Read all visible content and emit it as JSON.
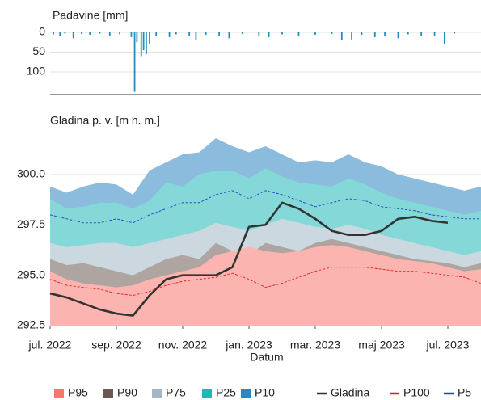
{
  "chart_data": [
    {
      "type": "bar",
      "title": "Padavine [mm]",
      "color": "#1f8fb8",
      "inverted": true,
      "grid": true,
      "xlim": [
        0,
        13
      ],
      "ylim": [
        0,
        155
      ],
      "yticks": [
        0,
        50,
        100
      ],
      "x": [
        0.1,
        0.3,
        0.45,
        0.7,
        0.95,
        1.2,
        1.5,
        1.8,
        2.1,
        2.45,
        2.55,
        2.62,
        2.75,
        2.82,
        2.9,
        3.0,
        3.2,
        3.6,
        3.8,
        4.2,
        4.4,
        4.7,
        5.1,
        5.4,
        5.8,
        6.3,
        6.6,
        7.0,
        7.5,
        8.0,
        8.5,
        8.8,
        9.1,
        9.4,
        9.8,
        10.1,
        10.5,
        10.8,
        11.2,
        11.6,
        11.9,
        12.2
      ],
      "values": [
        5,
        10,
        3,
        15,
        4,
        6,
        3,
        8,
        5,
        12,
        150,
        25,
        60,
        45,
        55,
        30,
        8,
        12,
        5,
        10,
        20,
        6,
        8,
        15,
        4,
        10,
        12,
        5,
        8,
        6,
        4,
        20,
        18,
        6,
        12,
        8,
        15,
        5,
        10,
        8,
        30,
        3
      ]
    },
    {
      "type": "area",
      "title": "Gladina p. v. [m n. m.]",
      "xlabel": "Datum",
      "grid": true,
      "legend": "bottom",
      "xlim": [
        0,
        13
      ],
      "xticks": [
        {
          "value": 0,
          "label": "jul. 2022"
        },
        {
          "value": 2,
          "label": "sep. 2022"
        },
        {
          "value": 4,
          "label": "nov. 2022"
        },
        {
          "value": 6,
          "label": "jan. 2023"
        },
        {
          "value": 8,
          "label": "mar. 2023"
        },
        {
          "value": 10,
          "label": "maj 2023"
        },
        {
          "value": 12,
          "label": "jul. 2023"
        }
      ],
      "ylim": [
        292.5,
        302
      ],
      "yticks": [
        292.5,
        {
          "value": 295,
          "label": "295.0"
        },
        297.5,
        {
          "value": 300,
          "label": "300.0"
        }
      ],
      "x": [
        0,
        0.5,
        1,
        1.5,
        2,
        2.5,
        3,
        3.5,
        4,
        4.5,
        5,
        5.5,
        6,
        6.5,
        7,
        7.5,
        8,
        8.5,
        9,
        9.5,
        10,
        10.5,
        11,
        11.5,
        12,
        12.5,
        13
      ],
      "series": [
        {
          "name": "P95",
          "color": "#f8766d",
          "kind": "band",
          "values": [
            295.2,
            294.8,
            294.6,
            294.5,
            294.4,
            294.5,
            294.8,
            295.0,
            295.2,
            295.4,
            296.0,
            296.2,
            296.4,
            296.2,
            296.1,
            296.2,
            296.4,
            296.5,
            296.4,
            296.2,
            296.0,
            295.8,
            295.7,
            295.6,
            295.4,
            295.2,
            295.3
          ]
        },
        {
          "name": "P90",
          "color": "#6b5a52",
          "kind": "band",
          "values": [
            295.8,
            295.5,
            295.6,
            295.4,
            295.2,
            295.0,
            295.4,
            295.8,
            296.0,
            295.8,
            296.6,
            296.2,
            296.0,
            296.6,
            296.4,
            296.2,
            296.6,
            296.8,
            296.6,
            296.4,
            296.2,
            296.0,
            295.8,
            295.7,
            295.6,
            295.4,
            295.6
          ]
        },
        {
          "name": "P75",
          "color": "#a3b8c4",
          "kind": "band",
          "values": [
            296.6,
            296.4,
            296.5,
            296.6,
            296.6,
            296.4,
            296.6,
            296.8,
            297.0,
            297.2,
            297.6,
            297.4,
            297.2,
            297.5,
            297.8,
            297.6,
            297.4,
            297.3,
            297.5,
            297.3,
            297.0,
            296.8,
            296.6,
            296.4,
            296.2,
            296.0,
            296.2
          ]
        },
        {
          "name": "P25",
          "color": "#1fb8b8",
          "kind": "band",
          "values": [
            298.8,
            298.3,
            298.4,
            298.6,
            298.6,
            298.3,
            298.7,
            299.6,
            299.4,
            300.0,
            300.2,
            300.2,
            299.8,
            300.3,
            299.9,
            299.6,
            299.5,
            299.4,
            299.8,
            299.5,
            299.1,
            298.8,
            298.6,
            298.4,
            298.2,
            298.0,
            298.2
          ]
        },
        {
          "name": "P10",
          "color": "#2e86c1",
          "kind": "band",
          "values": [
            299.4,
            299.1,
            299.4,
            299.6,
            299.5,
            299.0,
            300.2,
            300.6,
            301.0,
            301.1,
            301.8,
            301.4,
            301.1,
            301.4,
            301.0,
            300.6,
            300.7,
            300.6,
            301.0,
            300.6,
            300.4,
            300.0,
            299.8,
            299.6,
            299.4,
            299.2,
            299.4
          ]
        },
        {
          "name": "Gladina",
          "color": "#333333",
          "kind": "line",
          "values": [
            294.1,
            293.9,
            293.6,
            293.3,
            293.1,
            293.0,
            294.0,
            294.8,
            295.0,
            295.0,
            295.0,
            295.4,
            297.4,
            297.5,
            298.6,
            298.3,
            297.8,
            297.2,
            297.0,
            297.0,
            297.2,
            297.8,
            297.9,
            297.7,
            297.6,
            null,
            null
          ]
        },
        {
          "name": "P100",
          "color": "#e41a1c",
          "kind": "dashed",
          "values": [
            294.8,
            294.5,
            294.4,
            294.3,
            294.1,
            294.0,
            294.2,
            294.5,
            294.7,
            294.8,
            294.9,
            295.1,
            294.8,
            294.4,
            294.6,
            294.9,
            295.2,
            295.4,
            295.4,
            295.4,
            295.3,
            295.2,
            295.2,
            295.1,
            295.0,
            294.9,
            294.6
          ]
        },
        {
          "name": "P5",
          "color": "#1f3fbf",
          "kind": "dashed",
          "values": [
            298.0,
            297.8,
            297.6,
            297.6,
            297.8,
            297.6,
            298.0,
            298.3,
            298.6,
            298.6,
            299.0,
            299.2,
            298.8,
            299.2,
            299.0,
            298.7,
            298.4,
            298.6,
            298.8,
            298.7,
            298.4,
            298.3,
            298.2,
            298.0,
            297.9,
            297.8,
            297.8
          ]
        }
      ]
    }
  ]
}
